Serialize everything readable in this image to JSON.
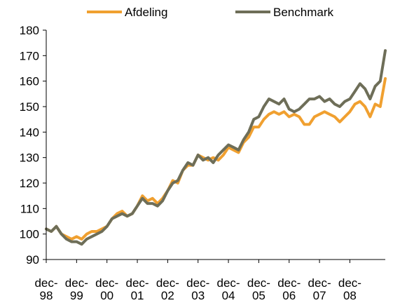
{
  "chart_data": {
    "type": "line",
    "title": "",
    "xlabel": "",
    "ylabel": "",
    "ylim": [
      90,
      180
    ],
    "yticks": [
      90,
      100,
      110,
      120,
      130,
      140,
      150,
      160,
      170,
      180
    ],
    "grid": false,
    "legend": "top",
    "xticks": [
      {
        "line1": "dec-",
        "line2": "98",
        "x": 0
      },
      {
        "line1": "dec-",
        "line2": "99",
        "x": 12
      },
      {
        "line1": "dec-",
        "line2": "00",
        "x": 24
      },
      {
        "line1": "dec-",
        "line2": "01",
        "x": 36
      },
      {
        "line1": "dec-",
        "line2": "02",
        "x": 48
      },
      {
        "line1": "dec-",
        "line2": "03",
        "x": 60
      },
      {
        "line1": "dec-",
        "line2": "04",
        "x": 72
      },
      {
        "line1": "dec-",
        "line2": "05",
        "x": 84
      },
      {
        "line1": "dec-",
        "line2": "06",
        "x": 96
      },
      {
        "line1": "dec-",
        "line2": "07",
        "x": 108
      },
      {
        "line1": "dec-",
        "line2": "08",
        "x": 120
      }
    ],
    "series": [
      {
        "name": "Afdeling",
        "color": "#F0A030",
        "points": [
          [
            0,
            102
          ],
          [
            2,
            101
          ],
          [
            4,
            103
          ],
          [
            6,
            100
          ],
          [
            8,
            99
          ],
          [
            10,
            98
          ],
          [
            12,
            99
          ],
          [
            14,
            98
          ],
          [
            16,
            100
          ],
          [
            18,
            101
          ],
          [
            20,
            101
          ],
          [
            22,
            102
          ],
          [
            24,
            103
          ],
          [
            26,
            106
          ],
          [
            28,
            108
          ],
          [
            30,
            109
          ],
          [
            32,
            107
          ],
          [
            34,
            108
          ],
          [
            36,
            111
          ],
          [
            38,
            115
          ],
          [
            40,
            113
          ],
          [
            42,
            114
          ],
          [
            44,
            112
          ],
          [
            46,
            114
          ],
          [
            48,
            117
          ],
          [
            50,
            121
          ],
          [
            52,
            120
          ],
          [
            54,
            125
          ],
          [
            56,
            127
          ],
          [
            58,
            127
          ],
          [
            60,
            131
          ],
          [
            62,
            130
          ],
          [
            64,
            129
          ],
          [
            66,
            130
          ],
          [
            68,
            129
          ],
          [
            70,
            131
          ],
          [
            72,
            134
          ],
          [
            74,
            133
          ],
          [
            76,
            132
          ],
          [
            78,
            136
          ],
          [
            80,
            138
          ],
          [
            82,
            142
          ],
          [
            84,
            142
          ],
          [
            86,
            145
          ],
          [
            88,
            147
          ],
          [
            90,
            148
          ],
          [
            92,
            147
          ],
          [
            94,
            148
          ],
          [
            96,
            146
          ],
          [
            98,
            147
          ],
          [
            100,
            146
          ],
          [
            102,
            143
          ],
          [
            104,
            143
          ],
          [
            106,
            146
          ],
          [
            108,
            147
          ],
          [
            110,
            148
          ],
          [
            112,
            147
          ],
          [
            114,
            146
          ],
          [
            116,
            144
          ],
          [
            118,
            146
          ],
          [
            120,
            148
          ],
          [
            122,
            151
          ],
          [
            124,
            152
          ],
          [
            126,
            150
          ],
          [
            128,
            146
          ],
          [
            130,
            151
          ],
          [
            132,
            150
          ],
          [
            134,
            161
          ]
        ]
      },
      {
        "name": "Benchmark",
        "color": "#6E6E58",
        "points": [
          [
            0,
            102
          ],
          [
            2,
            101
          ],
          [
            4,
            103
          ],
          [
            6,
            100
          ],
          [
            8,
            98
          ],
          [
            10,
            97
          ],
          [
            12,
            97
          ],
          [
            14,
            96
          ],
          [
            16,
            98
          ],
          [
            18,
            99
          ],
          [
            20,
            100
          ],
          [
            22,
            101
          ],
          [
            24,
            103
          ],
          [
            26,
            106
          ],
          [
            28,
            107
          ],
          [
            30,
            108
          ],
          [
            32,
            107
          ],
          [
            34,
            108
          ],
          [
            36,
            111
          ],
          [
            38,
            114
          ],
          [
            40,
            112
          ],
          [
            42,
            112
          ],
          [
            44,
            111
          ],
          [
            46,
            113
          ],
          [
            48,
            117
          ],
          [
            50,
            120
          ],
          [
            52,
            121
          ],
          [
            54,
            125
          ],
          [
            56,
            128
          ],
          [
            58,
            127
          ],
          [
            60,
            131
          ],
          [
            62,
            129
          ],
          [
            64,
            130
          ],
          [
            66,
            128
          ],
          [
            68,
            131
          ],
          [
            70,
            133
          ],
          [
            72,
            135
          ],
          [
            74,
            134
          ],
          [
            76,
            133
          ],
          [
            78,
            137
          ],
          [
            80,
            140
          ],
          [
            82,
            145
          ],
          [
            84,
            146
          ],
          [
            86,
            150
          ],
          [
            88,
            153
          ],
          [
            90,
            152
          ],
          [
            92,
            151
          ],
          [
            94,
            153
          ],
          [
            96,
            149
          ],
          [
            98,
            148
          ],
          [
            100,
            149
          ],
          [
            102,
            151
          ],
          [
            104,
            153
          ],
          [
            106,
            153
          ],
          [
            108,
            154
          ],
          [
            110,
            152
          ],
          [
            112,
            153
          ],
          [
            114,
            151
          ],
          [
            116,
            150
          ],
          [
            118,
            152
          ],
          [
            120,
            153
          ],
          [
            122,
            156
          ],
          [
            124,
            159
          ],
          [
            126,
            157
          ],
          [
            128,
            153
          ],
          [
            130,
            158
          ],
          [
            132,
            160
          ],
          [
            134,
            172
          ]
        ]
      }
    ]
  }
}
